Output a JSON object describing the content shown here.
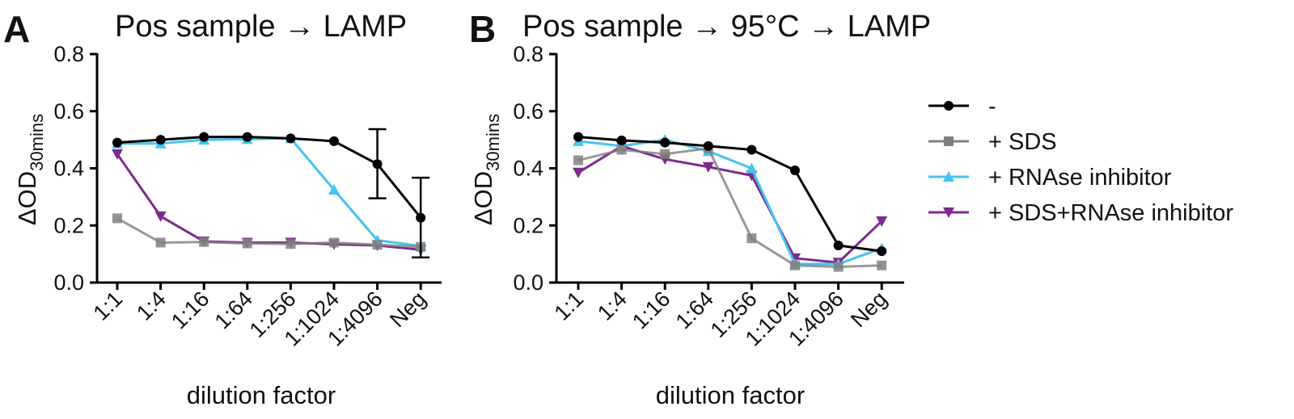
{
  "chart_data": [
    {
      "type": "line",
      "panel_label": "A",
      "title": "Pos sample → LAMP",
      "xlabel": "dilution factor",
      "ylabel_main": "ΔOD",
      "ylabel_sub": "30mins",
      "ylim": [
        0,
        0.8
      ],
      "yticks": [
        "0.0",
        "0.2",
        "0.4",
        "0.6",
        "0.8"
      ],
      "categories": [
        "1:1",
        "1:4",
        "1:16",
        "1:64",
        "1:256",
        "1:1024",
        "1:4096",
        "Neg"
      ],
      "grid": false,
      "series": [
        {
          "name": "-",
          "color": "#000000",
          "marker": "circle",
          "values": [
            0.49,
            0.5,
            0.51,
            0.51,
            0.505,
            0.495,
            0.415,
            0.227
          ],
          "error_low": [
            null,
            null,
            null,
            null,
            null,
            null,
            0.295,
            0.088
          ],
          "error_high": [
            null,
            null,
            null,
            null,
            null,
            null,
            0.537,
            0.367
          ]
        },
        {
          "name": "+ SDS",
          "color": "#808080",
          "marker": "square",
          "values": [
            0.225,
            0.14,
            0.142,
            0.137,
            0.135,
            0.14,
            0.132,
            0.125
          ]
        },
        {
          "name": "+ RNAse inhibitor",
          "color": "#45c4f0",
          "marker": "triangle-up",
          "values": [
            0.487,
            0.487,
            0.5,
            0.502,
            0.505,
            0.325,
            0.148,
            0.128
          ]
        },
        {
          "name": "+ SDS+RNAse inhibitor",
          "color": "#7d2a8c",
          "marker": "triangle-down",
          "values": [
            0.45,
            0.232,
            0.144,
            0.14,
            0.14,
            0.134,
            0.13,
            0.115
          ]
        }
      ]
    },
    {
      "type": "line",
      "panel_label": "B",
      "title": "Pos sample → 95°C → LAMP",
      "xlabel": "dilution factor",
      "ylabel_main": "ΔOD",
      "ylabel_sub": "30mins",
      "ylim": [
        0,
        0.8
      ],
      "yticks": [
        "0.0",
        "0.2",
        "0.4",
        "0.6",
        "0.8"
      ],
      "categories": [
        "1:1",
        "1:4",
        "1:16",
        "1:64",
        "1:256",
        "1:1024",
        "1:4096",
        "Neg"
      ],
      "grid": false,
      "legend": "right",
      "series": [
        {
          "name": "-",
          "color": "#000000",
          "marker": "circle",
          "values": [
            0.51,
            0.498,
            0.49,
            0.478,
            0.465,
            0.393,
            0.13,
            0.11
          ]
        },
        {
          "name": "+ SDS",
          "color": "#808080",
          "marker": "square",
          "values": [
            0.428,
            0.465,
            0.45,
            0.47,
            0.155,
            0.06,
            0.055,
            0.06
          ]
        },
        {
          "name": "+ RNAse inhibitor",
          "color": "#45c4f0",
          "marker": "triangle-up",
          "values": [
            0.495,
            0.478,
            0.5,
            0.46,
            0.4,
            0.065,
            0.065,
            0.12
          ]
        },
        {
          "name": "+ SDS+RNAse inhibitor",
          "color": "#7d2a8c",
          "marker": "triangle-down",
          "values": [
            0.385,
            0.478,
            0.432,
            0.405,
            0.375,
            0.085,
            0.07,
            0.215
          ]
        }
      ]
    }
  ]
}
